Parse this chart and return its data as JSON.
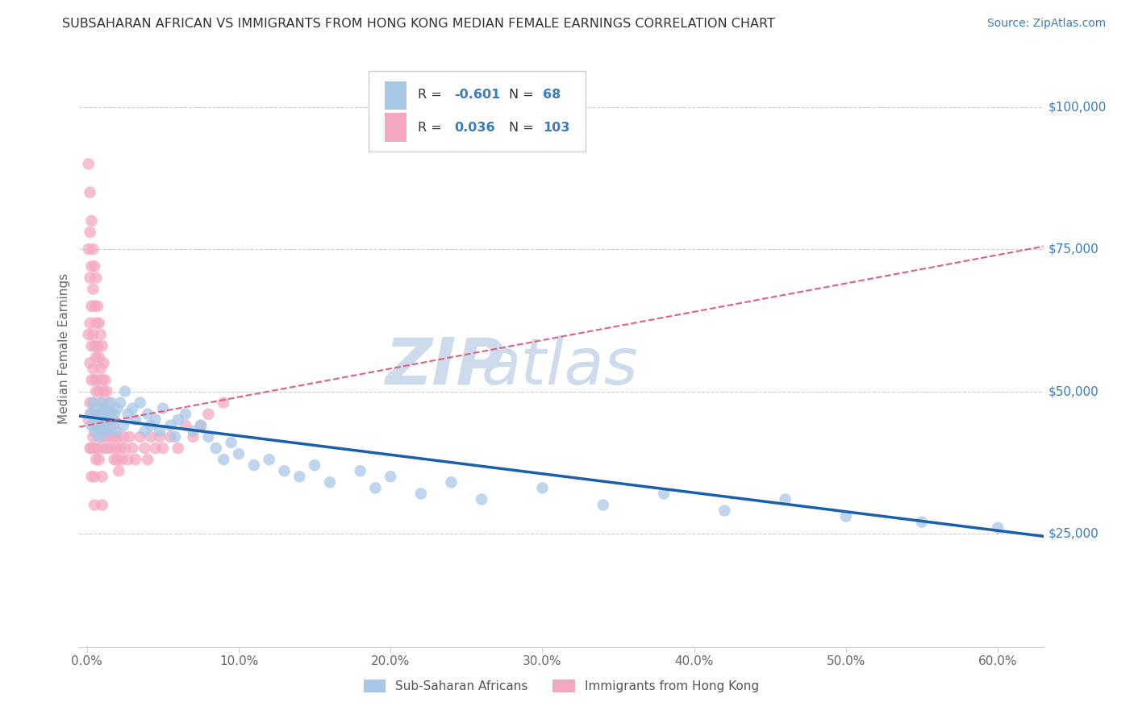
{
  "title": "SUBSAHARAN AFRICAN VS IMMIGRANTS FROM HONG KONG MEDIAN FEMALE EARNINGS CORRELATION CHART",
  "source": "Source: ZipAtlas.com",
  "ylabel": "Median Female Earnings",
  "xlabel_ticks": [
    "0.0%",
    "10.0%",
    "20.0%",
    "30.0%",
    "40.0%",
    "50.0%",
    "60.0%"
  ],
  "xlabel_vals": [
    0.0,
    0.1,
    0.2,
    0.3,
    0.4,
    0.5,
    0.6
  ],
  "ytick_labels": [
    "$25,000",
    "$50,000",
    "$75,000",
    "$100,000"
  ],
  "ytick_vals": [
    25000,
    50000,
    75000,
    100000
  ],
  "ylim": [
    5000,
    110000
  ],
  "xlim": [
    -0.005,
    0.63
  ],
  "R_blue": -0.601,
  "N_blue": 68,
  "R_pink": 0.036,
  "N_pink": 103,
  "blue_color": "#a8c8e8",
  "pink_color": "#f4a8c0",
  "blue_line_color": "#1a5fa8",
  "pink_line_color": "#e06080",
  "watermark_zip": "ZIP",
  "watermark_atlas": "atlas",
  "watermark_color": "#ccdcec",
  "legend_label_blue": "Sub-Saharan Africans",
  "legend_label_pink": "Immigrants from Hong Kong",
  "title_color": "#333333",
  "axis_label_color": "#666666",
  "blue_scatter_x": [
    0.002,
    0.003,
    0.004,
    0.005,
    0.005,
    0.006,
    0.007,
    0.008,
    0.008,
    0.009,
    0.01,
    0.01,
    0.011,
    0.012,
    0.012,
    0.013,
    0.014,
    0.015,
    0.015,
    0.016,
    0.017,
    0.018,
    0.019,
    0.02,
    0.022,
    0.024,
    0.025,
    0.027,
    0.03,
    0.032,
    0.035,
    0.038,
    0.04,
    0.042,
    0.045,
    0.048,
    0.05,
    0.055,
    0.058,
    0.06,
    0.065,
    0.07,
    0.075,
    0.08,
    0.085,
    0.09,
    0.095,
    0.1,
    0.11,
    0.12,
    0.13,
    0.14,
    0.15,
    0.16,
    0.18,
    0.19,
    0.2,
    0.22,
    0.24,
    0.26,
    0.3,
    0.34,
    0.38,
    0.42,
    0.46,
    0.5,
    0.55,
    0.6
  ],
  "blue_scatter_y": [
    46000,
    44000,
    48000,
    43000,
    47000,
    45000,
    44000,
    46000,
    42000,
    45000,
    48000,
    43000,
    47000,
    44000,
    46000,
    45000,
    43000,
    47000,
    44000,
    48000,
    45000,
    46000,
    43000,
    47000,
    48000,
    44000,
    50000,
    46000,
    47000,
    45000,
    48000,
    43000,
    46000,
    44000,
    45000,
    43000,
    47000,
    44000,
    42000,
    45000,
    46000,
    43000,
    44000,
    42000,
    40000,
    38000,
    41000,
    39000,
    37000,
    38000,
    36000,
    35000,
    37000,
    34000,
    36000,
    33000,
    35000,
    32000,
    34000,
    31000,
    33000,
    30000,
    32000,
    29000,
    31000,
    28000,
    27000,
    26000
  ],
  "pink_scatter_x": [
    0.001,
    0.001,
    0.001,
    0.001,
    0.002,
    0.002,
    0.002,
    0.002,
    0.002,
    0.002,
    0.002,
    0.003,
    0.003,
    0.003,
    0.003,
    0.003,
    0.003,
    0.003,
    0.003,
    0.004,
    0.004,
    0.004,
    0.004,
    0.004,
    0.004,
    0.005,
    0.005,
    0.005,
    0.005,
    0.005,
    0.005,
    0.005,
    0.005,
    0.006,
    0.006,
    0.006,
    0.006,
    0.006,
    0.006,
    0.007,
    0.007,
    0.007,
    0.007,
    0.007,
    0.008,
    0.008,
    0.008,
    0.008,
    0.008,
    0.009,
    0.009,
    0.009,
    0.009,
    0.01,
    0.01,
    0.01,
    0.01,
    0.01,
    0.01,
    0.011,
    0.011,
    0.011,
    0.012,
    0.012,
    0.012,
    0.013,
    0.013,
    0.013,
    0.014,
    0.014,
    0.015,
    0.015,
    0.016,
    0.016,
    0.017,
    0.018,
    0.018,
    0.019,
    0.02,
    0.02,
    0.021,
    0.022,
    0.023,
    0.024,
    0.025,
    0.027,
    0.028,
    0.03,
    0.032,
    0.035,
    0.038,
    0.04,
    0.042,
    0.045,
    0.048,
    0.05,
    0.055,
    0.06,
    0.065,
    0.07,
    0.075,
    0.08,
    0.09
  ],
  "pink_scatter_y": [
    90000,
    75000,
    60000,
    45000,
    85000,
    78000,
    70000,
    62000,
    55000,
    48000,
    40000,
    80000,
    72000,
    65000,
    58000,
    52000,
    46000,
    40000,
    35000,
    75000,
    68000,
    60000,
    54000,
    48000,
    42000,
    72000,
    65000,
    58000,
    52000,
    46000,
    40000,
    35000,
    30000,
    70000,
    62000,
    56000,
    50000,
    44000,
    38000,
    65000,
    58000,
    52000,
    46000,
    40000,
    62000,
    56000,
    50000,
    44000,
    38000,
    60000,
    54000,
    48000,
    42000,
    58000,
    52000,
    46000,
    40000,
    35000,
    30000,
    55000,
    50000,
    44000,
    52000,
    47000,
    42000,
    50000,
    45000,
    40000,
    48000,
    43000,
    46000,
    42000,
    45000,
    40000,
    44000,
    42000,
    38000,
    40000,
    42000,
    38000,
    36000,
    40000,
    38000,
    42000,
    40000,
    38000,
    42000,
    40000,
    38000,
    42000,
    40000,
    38000,
    42000,
    40000,
    42000,
    40000,
    42000,
    40000,
    44000,
    42000,
    44000,
    46000,
    48000
  ]
}
